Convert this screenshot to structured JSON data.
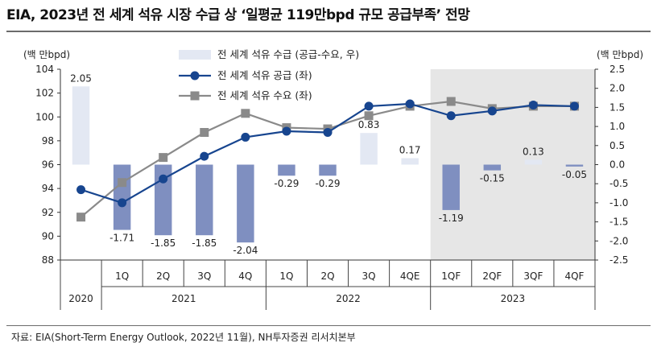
{
  "title": "EIA, 2023년 전 세계 석유 시장 수급 상 ‘일평균 119만bpd 규모 공급부족’ 전망",
  "source": "자료: EIA(Short-Term Energy Outlook, 2022년 11월), NH투자증권 리서치본부",
  "chart_data": {
    "type": "bar",
    "title": "EIA, 2023년 전 세계 석유 시장 수급 상 ‘일평균 119만bpd 규모 공급부족’ 전망",
    "ylabel_left": "(백 만bpd)",
    "ylabel_right": "(백 만bpd)",
    "categories": [
      "2020",
      "1Q",
      "2Q",
      "3Q",
      "4Q",
      "1Q",
      "2Q",
      "3Q",
      "4QE",
      "1QF",
      "2QF",
      "3QF",
      "4QF"
    ],
    "year_groups": [
      {
        "label": "2020",
        "from": 0,
        "to": 0
      },
      {
        "label": "2021",
        "from": 1,
        "to": 4
      },
      {
        "label": "2022",
        "from": 5,
        "to": 8
      },
      {
        "label": "2023",
        "from": 9,
        "to": 12
      }
    ],
    "forecast_from_index": 9,
    "ylim_left": [
      88,
      104
    ],
    "yticks_left": [
      88,
      90,
      92,
      94,
      96,
      98,
      100,
      102,
      104
    ],
    "ylim_right": [
      -2.5,
      2.5
    ],
    "yticks_right": [
      "2.5",
      "2.0",
      "1.5",
      "1.0",
      "0.5",
      "0.0",
      "-0.5",
      "-1.0",
      "-1.5",
      "-2.0",
      "-2.5"
    ],
    "series": [
      {
        "name": "전 세계 석유 수급 (공급-수요, 우)",
        "type": "bar",
        "axis": "right",
        "color": "#7f8fc0",
        "color_positive": "#e3e8f3",
        "values": [
          2.05,
          -1.71,
          -1.85,
          -1.85,
          -2.04,
          -0.29,
          -0.29,
          0.83,
          0.17,
          -1.19,
          -0.15,
          0.13,
          -0.05
        ],
        "labels": [
          "2.05",
          "-1.71",
          "-1.85",
          "-1.85",
          "-2.04",
          "-0.29",
          "-0.29",
          "0.83",
          "0.17",
          "-1.19",
          "-0.15",
          "0.13",
          "-0.05"
        ]
      },
      {
        "name": "전 세계 석유 공급 (좌)",
        "type": "line",
        "axis": "left",
        "color": "#17458f",
        "values": [
          93.9,
          92.8,
          94.8,
          96.7,
          98.3,
          98.8,
          98.7,
          100.9,
          101.1,
          100.1,
          100.5,
          101.0,
          100.9
        ]
      },
      {
        "name": "전 세계 석유 수요 (좌)",
        "type": "line",
        "axis": "left",
        "color": "#8a8a8a",
        "values": [
          91.6,
          94.5,
          96.6,
          98.7,
          100.3,
          99.1,
          99.0,
          100.1,
          100.9,
          101.3,
          100.7,
          100.9,
          100.9
        ]
      }
    ]
  }
}
